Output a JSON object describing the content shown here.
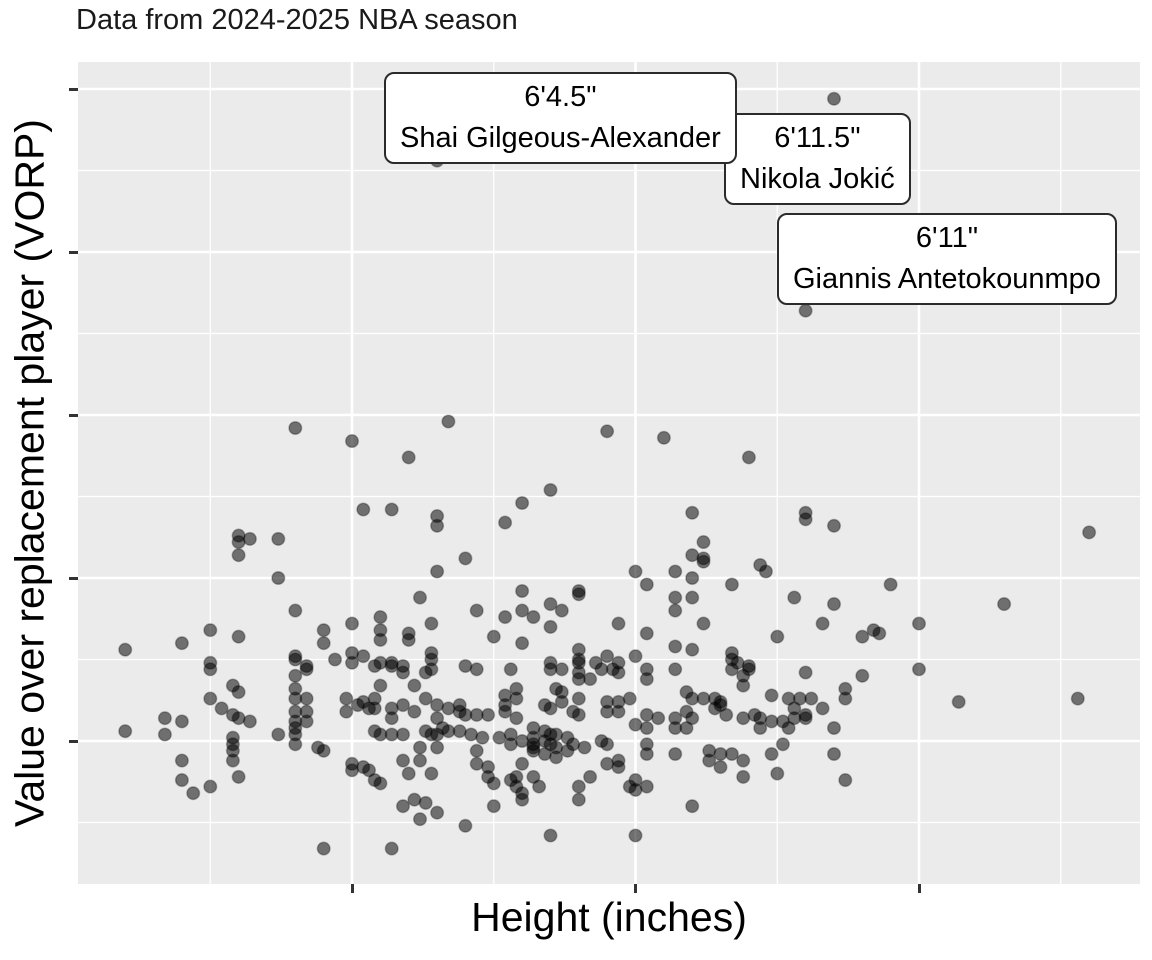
{
  "title": "Data from 2024-2025 NBA season",
  "chart_data": {
    "type": "scatter",
    "title": "Data from 2024-2025 NBA season",
    "xlabel": "Height (inches)",
    "ylabel": "Value over replacement player (VORP)",
    "xlim": [
      70.2,
      88.9
    ],
    "ylim": [
      -2.25,
      10.4
    ],
    "x_major_ticks": [
      75,
      80,
      85
    ],
    "x_minor_gridlines": [
      72.5,
      77.5,
      82.5,
      87.5
    ],
    "y_major_ticks": [
      0,
      2.5,
      5,
      7.5,
      10
    ],
    "y_minor_gridlines": [
      -1.25,
      1.25,
      3.75,
      6.25,
      8.75
    ],
    "axis_tick_labels_shown": false,
    "grid": true,
    "legend": "none",
    "panel_bg": "#EBEBEB",
    "grid_color": "#FFFFFF",
    "point_color": "#000000",
    "point_opacity": 0.53,
    "annotations": [
      {
        "height_label": "6'4.5\"",
        "name": "Shai Gilgeous-Alexander",
        "x": 76.5,
        "y": 8.9
      },
      {
        "height_label": "6'11.5\"",
        "name": "Nikola Jokić",
        "x": 83.5,
        "y": 9.85
      },
      {
        "height_label": "6'11\"",
        "name": "Giannis Antetokounmpo",
        "x": 83.0,
        "y": 6.6
      }
    ],
    "points": [
      [
        76.5,
        8.9
      ],
      [
        83.5,
        9.85
      ],
      [
        83.0,
        6.6
      ],
      [
        74,
        4.8
      ],
      [
        75,
        4.6
      ],
      [
        76,
        4.35
      ],
      [
        76.7,
        4.9
      ],
      [
        79.5,
        4.75
      ],
      [
        80.5,
        4.65
      ],
      [
        82,
        4.35
      ],
      [
        78.5,
        3.85
      ],
      [
        78,
        3.65
      ],
      [
        77.7,
        3.35
      ],
      [
        75.2,
        3.55
      ],
      [
        75.7,
        3.55
      ],
      [
        76.5,
        3.45
      ],
      [
        76.5,
        3.3
      ],
      [
        81,
        3.5
      ],
      [
        83,
        3.5
      ],
      [
        83,
        3.4
      ],
      [
        83.5,
        3.3
      ],
      [
        88,
        3.2
      ],
      [
        81.2,
        3.05
      ],
      [
        73,
        3.15
      ],
      [
        73,
        3.05
      ],
      [
        73.2,
        3.1
      ],
      [
        73.7,
        3.1
      ],
      [
        73,
        2.85
      ],
      [
        77,
        2.8
      ],
      [
        76.5,
        2.6
      ],
      [
        81,
        2.85
      ],
      [
        81.2,
        2.75
      ],
      [
        81.2,
        2.8
      ],
      [
        80,
        2.6
      ],
      [
        80.7,
        2.6
      ],
      [
        81,
        2.5
      ],
      [
        82.2,
        2.7
      ],
      [
        82.3,
        2.6
      ],
      [
        73.7,
        2.5
      ],
      [
        74,
        2.0
      ],
      [
        76.2,
        2.2
      ],
      [
        80.2,
        2.4
      ],
      [
        81.7,
        2.4
      ],
      [
        84.5,
        2.4
      ],
      [
        78,
        2.3
      ],
      [
        79,
        2.3
      ],
      [
        79,
        2.25
      ],
      [
        83.5,
        2.1
      ],
      [
        82.8,
        2.2
      ],
      [
        86.5,
        2.1
      ],
      [
        78.5,
        2.1
      ],
      [
        78.7,
        2.0
      ],
      [
        78,
        2.0
      ],
      [
        77.2,
        2.0
      ],
      [
        77.7,
        1.9
      ],
      [
        78.2,
        1.9
      ],
      [
        80.7,
        2.2
      ],
      [
        81,
        2.2
      ],
      [
        80.7,
        2.0
      ],
      [
        78.5,
        1.75
      ],
      [
        79.7,
        1.8
      ],
      [
        81.2,
        1.8
      ],
      [
        83.3,
        1.8
      ],
      [
        85,
        1.8
      ],
      [
        84.2,
        1.7
      ],
      [
        84.3,
        1.65
      ],
      [
        84,
        1.6
      ],
      [
        80.2,
        1.65
      ],
      [
        82.5,
        1.6
      ],
      [
        77.5,
        1.6
      ],
      [
        78,
        1.5
      ],
      [
        72.5,
        1.7
      ],
      [
        73,
        1.6
      ],
      [
        72,
        1.5
      ],
      [
        71,
        1.4
      ],
      [
        74.5,
        1.7
      ],
      [
        74.5,
        1.5
      ],
      [
        75,
        1.8
      ],
      [
        75.5,
        1.9
      ],
      [
        75.5,
        1.7
      ],
      [
        75.5,
        1.55
      ],
      [
        76,
        1.65
      ],
      [
        76,
        1.55
      ],
      [
        76.4,
        1.8
      ],
      [
        76.4,
        1.35
      ],
      [
        76.4,
        1.25
      ],
      [
        75,
        1.35
      ],
      [
        75.2,
        1.3
      ],
      [
        74.7,
        1.25
      ],
      [
        75,
        1.2
      ],
      [
        74,
        1.3
      ],
      [
        74,
        1.25
      ],
      [
        74.2,
        1.15
      ],
      [
        72.5,
        1.2
      ],
      [
        72.5,
        1.1
      ],
      [
        75.5,
        1.2
      ],
      [
        75.7,
        1.2
      ],
      [
        75.9,
        1.15
      ],
      [
        76.4,
        1.1
      ],
      [
        77,
        1.15
      ],
      [
        77.2,
        1.1
      ],
      [
        80.7,
        1.45
      ],
      [
        81,
        1.4
      ],
      [
        79,
        1.4
      ],
      [
        79,
        1.25
      ],
      [
        79,
        1.2
      ],
      [
        78.5,
        1.2
      ],
      [
        78.7,
        1.1
      ],
      [
        79.5,
        1.3
      ],
      [
        79.7,
        1.2
      ],
      [
        79.3,
        1.2
      ],
      [
        80,
        1.3
      ],
      [
        81.7,
        1.35
      ],
      [
        81.7,
        1.25
      ],
      [
        81.8,
        1.2
      ],
      [
        82,
        1.15
      ],
      [
        77.8,
        1.1
      ],
      [
        78.5,
        1.1
      ],
      [
        85,
        1.1
      ],
      [
        83,
        1.05
      ],
      [
        84,
        1.0
      ],
      [
        79,
        1.05
      ],
      [
        79.4,
        1.1
      ],
      [
        79.6,
        1.1
      ],
      [
        79.7,
        1.05
      ],
      [
        80.2,
        1.1
      ],
      [
        80.7,
        1.1
      ],
      [
        81.7,
        1.1
      ],
      [
        81.9,
        1.0
      ],
      [
        82,
        1.1
      ],
      [
        74.2,
        1.1
      ],
      [
        74,
        1.0
      ],
      [
        75.4,
        1.15
      ],
      [
        75.7,
        1.15
      ],
      [
        75.9,
        1.05
      ],
      [
        76.3,
        1.05
      ],
      [
        79,
        0.95
      ],
      [
        79.2,
        0.95
      ],
      [
        80.2,
        0.95
      ],
      [
        81.9,
        0.85
      ],
      [
        78.6,
        0.8
      ],
      [
        78.7,
        0.75
      ],
      [
        77.9,
        0.8
      ],
      [
        77.9,
        0.65
      ],
      [
        77.7,
        0.7
      ],
      [
        77.7,
        0.55
      ],
      [
        78.7,
        0.6
      ],
      [
        79,
        0.65
      ],
      [
        78.4,
        0.55
      ],
      [
        78.5,
        0.5
      ],
      [
        78.9,
        0.45
      ],
      [
        79,
        0.4
      ],
      [
        79.5,
        0.6
      ],
      [
        79.7,
        0.6
      ],
      [
        80.9,
        0.75
      ],
      [
        81,
        0.65
      ],
      [
        81.2,
        0.65
      ],
      [
        81.4,
        0.65
      ],
      [
        81.5,
        0.55
      ],
      [
        81.5,
        0.6
      ],
      [
        81.4,
        0.5
      ],
      [
        79.9,
        0.65
      ],
      [
        82.4,
        0.7
      ],
      [
        82.7,
        0.65
      ],
      [
        82.8,
        0.5
      ],
      [
        83.7,
        0.8
      ],
      [
        83.7,
        0.65
      ],
      [
        82.9,
        0.65
      ],
      [
        83.1,
        0.65
      ],
      [
        83.3,
        0.5
      ],
      [
        85.7,
        0.6
      ],
      [
        87.8,
        0.65
      ],
      [
        72.5,
        0.65
      ],
      [
        72.7,
        0.5
      ],
      [
        72.9,
        0.85
      ],
      [
        73,
        0.75
      ],
      [
        74,
        0.8
      ],
      [
        74,
        0.65
      ],
      [
        74.2,
        0.65
      ],
      [
        74.9,
        0.65
      ],
      [
        75.1,
        0.55
      ],
      [
        75.3,
        0.5
      ],
      [
        75.2,
        0.6
      ],
      [
        75.4,
        0.65
      ],
      [
        75.4,
        0.5
      ],
      [
        75.5,
        0.85
      ],
      [
        75.7,
        0.5
      ],
      [
        75.9,
        0.55
      ],
      [
        76.1,
        0.85
      ],
      [
        76.3,
        0.65
      ],
      [
        76.5,
        0.55
      ],
      [
        76.7,
        0.5
      ],
      [
        76.9,
        0.55
      ],
      [
        74,
        0.45
      ],
      [
        74.2,
        0.45
      ],
      [
        74.9,
        0.45
      ],
      [
        75.7,
        0.35
      ],
      [
        76.1,
        0.45
      ],
      [
        76.5,
        0.35
      ],
      [
        76.9,
        0.45
      ],
      [
        77,
        0.4
      ],
      [
        77.2,
        0.4
      ],
      [
        77.4,
        0.4
      ],
      [
        77.7,
        0.45
      ],
      [
        77.9,
        0.35
      ],
      [
        79.7,
        0.45
      ],
      [
        79.5,
        0.45
      ],
      [
        80.2,
        0.4
      ],
      [
        80.4,
        0.35
      ],
      [
        80.7,
        0.35
      ],
      [
        80.9,
        0.45
      ],
      [
        81,
        0.35
      ],
      [
        82.2,
        0.35
      ],
      [
        82.4,
        0.3
      ],
      [
        82.6,
        0.3
      ],
      [
        82.8,
        0.35
      ],
      [
        81.9,
        0.35
      ],
      [
        82.1,
        0.4
      ],
      [
        81.6,
        0.4
      ],
      [
        83,
        0.4
      ],
      [
        83,
        0.35
      ],
      [
        72.9,
        0.4
      ],
      [
        73,
        0.35
      ],
      [
        73.2,
        0.3
      ],
      [
        74,
        0.3
      ],
      [
        74.2,
        0.3
      ],
      [
        72,
        0.3
      ],
      [
        71.7,
        0.35
      ],
      [
        80.9,
        0.2
      ],
      [
        80.7,
        0.2
      ],
      [
        80,
        0.25
      ],
      [
        80.2,
        0.2
      ],
      [
        82.2,
        0.2
      ],
      [
        82.7,
        0.2
      ],
      [
        83.5,
        0.2
      ],
      [
        76.6,
        0.2
      ],
      [
        76.7,
        0.15
      ],
      [
        76.9,
        0.15
      ],
      [
        77.1,
        0.1
      ],
      [
        77.3,
        0.05
      ],
      [
        77.6,
        0.05
      ],
      [
        78.2,
        0.2
      ],
      [
        78.2,
        0.05
      ],
      [
        78.4,
        0.15
      ],
      [
        78.5,
        0.1
      ],
      [
        78.6,
        0.1
      ],
      [
        78.8,
        0.05
      ],
      [
        74,
        0.2
      ],
      [
        74,
        0.1
      ],
      [
        73.7,
        0.1
      ],
      [
        71,
        0.15
      ],
      [
        71.7,
        0.1
      ],
      [
        76.3,
        0.15
      ],
      [
        76.4,
        0.1
      ],
      [
        75.4,
        0.15
      ],
      [
        75.5,
        0.1
      ],
      [
        75.7,
        0.1
      ],
      [
        75.9,
        0.1
      ],
      [
        76.5,
        0.1
      ],
      [
        72.9,
        0.05
      ],
      [
        77.8,
        0.1
      ],
      [
        78,
        0.0
      ],
      [
        78.4,
        0.0
      ],
      [
        79.4,
        0.0
      ],
      [
        72.9,
        -0.05
      ],
      [
        74,
        -0.05
      ],
      [
        77.8,
        -0.05
      ],
      [
        78.2,
        -0.05
      ],
      [
        78.5,
        -0.05
      ],
      [
        78.9,
        -0.05
      ],
      [
        79.5,
        -0.05
      ],
      [
        80.2,
        -0.05
      ],
      [
        82.6,
        -0.05
      ],
      [
        72.9,
        -0.15
      ],
      [
        74.4,
        -0.1
      ],
      [
        74.5,
        -0.15
      ],
      [
        76.2,
        -0.1
      ],
      [
        76.5,
        -0.1
      ],
      [
        78.2,
        -0.1
      ],
      [
        78.2,
        -0.15
      ],
      [
        78.6,
        -0.1
      ],
      [
        79.1,
        -0.1
      ],
      [
        78.4,
        -0.2
      ],
      [
        78.8,
        -0.15
      ],
      [
        80.2,
        -0.2
      ],
      [
        80.7,
        -0.2
      ],
      [
        81.3,
        -0.15
      ],
      [
        81.5,
        -0.2
      ],
      [
        81.7,
        -0.2
      ],
      [
        82.4,
        -0.2
      ],
      [
        83.5,
        -0.2
      ],
      [
        72.9,
        -0.3
      ],
      [
        72,
        -0.3
      ],
      [
        75,
        -0.35
      ],
      [
        75.2,
        -0.4
      ],
      [
        75.3,
        -0.45
      ],
      [
        75,
        -0.45
      ],
      [
        75.9,
        -0.3
      ],
      [
        76.2,
        -0.3
      ],
      [
        77.2,
        -0.15
      ],
      [
        77.2,
        -0.35
      ],
      [
        77.4,
        -0.4
      ],
      [
        78,
        -0.35
      ],
      [
        78.6,
        -0.25
      ],
      [
        79.7,
        -0.3
      ],
      [
        79.5,
        -0.35
      ],
      [
        79.7,
        -0.4
      ],
      [
        81.9,
        -0.3
      ],
      [
        81.3,
        -0.3
      ],
      [
        81.5,
        -0.4
      ],
      [
        76.4,
        -0.5
      ],
      [
        76,
        -0.5
      ],
      [
        73,
        -0.55
      ],
      [
        77.4,
        -0.55
      ],
      [
        77.9,
        -0.55
      ],
      [
        78.2,
        -0.55
      ],
      [
        79.2,
        -0.55
      ],
      [
        81.9,
        -0.55
      ],
      [
        82.5,
        -0.5
      ],
      [
        72,
        -0.6
      ],
      [
        75.4,
        -0.6
      ],
      [
        75.5,
        -0.65
      ],
      [
        77.5,
        -0.65
      ],
      [
        77.8,
        -0.6
      ],
      [
        80,
        -0.6
      ],
      [
        83.7,
        -0.6
      ],
      [
        72.2,
        -0.8
      ],
      [
        72.5,
        -0.7
      ],
      [
        77.9,
        -0.7
      ],
      [
        78,
        -0.8
      ],
      [
        78.3,
        -0.7
      ],
      [
        79,
        -0.7
      ],
      [
        79.9,
        -0.7
      ],
      [
        80,
        -0.75
      ],
      [
        80.2,
        -0.7
      ],
      [
        78,
        -0.9
      ],
      [
        79,
        -0.9
      ],
      [
        76.1,
        -0.9
      ],
      [
        76.3,
        -0.95
      ],
      [
        75.9,
        -1.0
      ],
      [
        77.5,
        -1.0
      ],
      [
        81,
        -1.0
      ],
      [
        76.2,
        -1.2
      ],
      [
        76.5,
        -1.1
      ],
      [
        77,
        -1.3
      ],
      [
        78.5,
        -1.45
      ],
      [
        80,
        -1.45
      ],
      [
        74.5,
        -1.65
      ],
      [
        75.7,
        -1.65
      ]
    ]
  }
}
